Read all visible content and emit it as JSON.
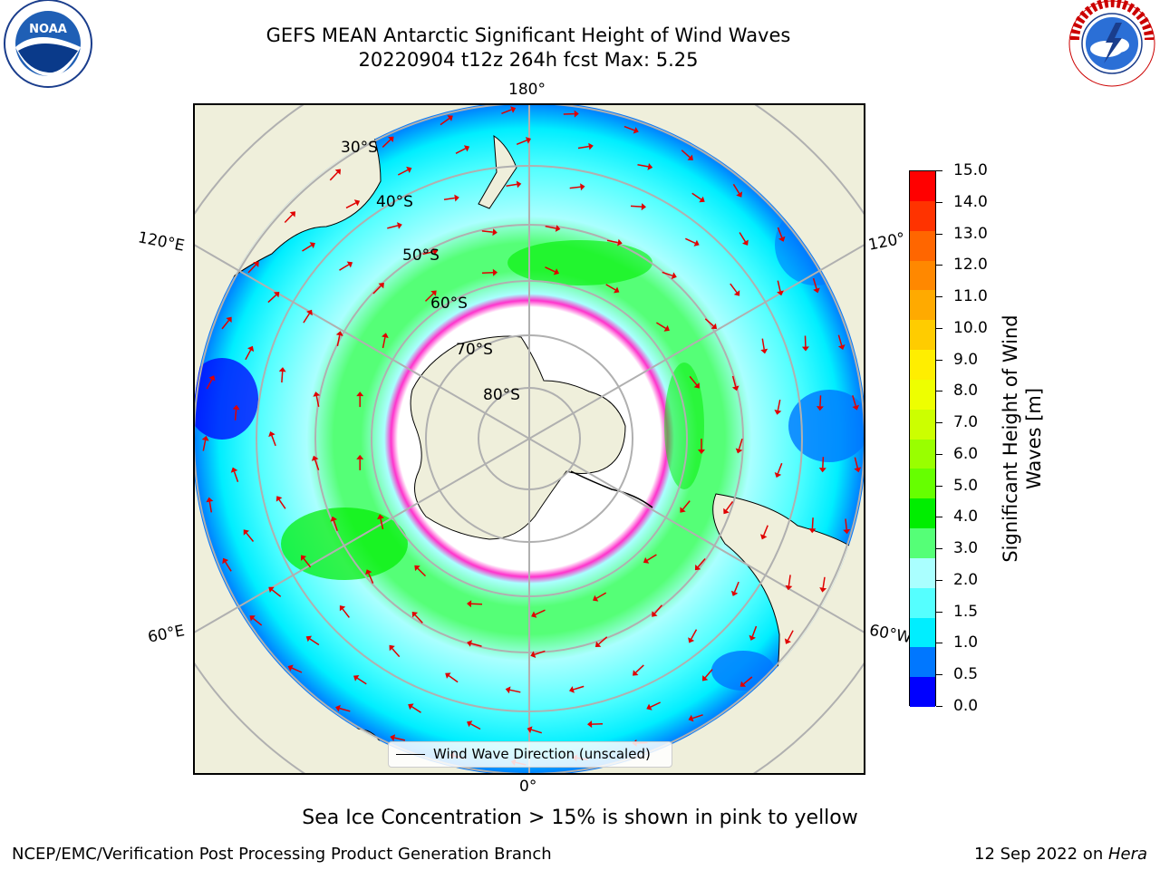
{
  "title": {
    "line1": "GEFS MEAN Antarctic Significant Height of Wind Waves",
    "line2": "20220904 t12z 264h fcst   Max: 5.25"
  },
  "map": {
    "projection": "south-polar-stereographic",
    "lon_labels": [
      "180°",
      "120°E",
      "120°",
      "60°E",
      "60°W",
      "0°"
    ],
    "lat_labels": [
      "30°S",
      "40°S",
      "50°S",
      "60°S",
      "70°S",
      "80°S"
    ],
    "legend": "Wind Wave Direction (unscaled)",
    "colors": {
      "land": "#efefdb",
      "sea_ice_edge": "#ff33cc",
      "arrow": "#e00000"
    }
  },
  "colorbar": {
    "label": "Significant Height of Wind Waves [m]",
    "ticks": [
      "15.0",
      "14.0",
      "13.0",
      "12.0",
      "11.0",
      "10.0",
      "9.0",
      "8.0",
      "7.0",
      "6.0",
      "5.0",
      "4.0",
      "3.0",
      "2.0",
      "1.5",
      "1.0",
      "0.5",
      "0.0"
    ],
    "colors_top_to_bottom": [
      "#ff0000",
      "#ff3300",
      "#ff6600",
      "#ff8800",
      "#ffaa00",
      "#ffcc00",
      "#ffee00",
      "#eeff00",
      "#ccff00",
      "#99ff00",
      "#66ff00",
      "#00ee00",
      "#55ff77",
      "#aaffff",
      "#55ffff",
      "#00eeff",
      "#0077ff",
      "#0000ff"
    ]
  },
  "note": "Sea Ice Concentration > 15% is shown in pink to yellow",
  "footer": {
    "left": "NCEP/EMC/Verification Post Processing Product Generation Branch",
    "right_date": "12 Sep 2022 on ",
    "right_host": "Hera"
  },
  "logos": {
    "left": "NOAA",
    "right": "NATIONAL WEATHER SERVICE"
  }
}
